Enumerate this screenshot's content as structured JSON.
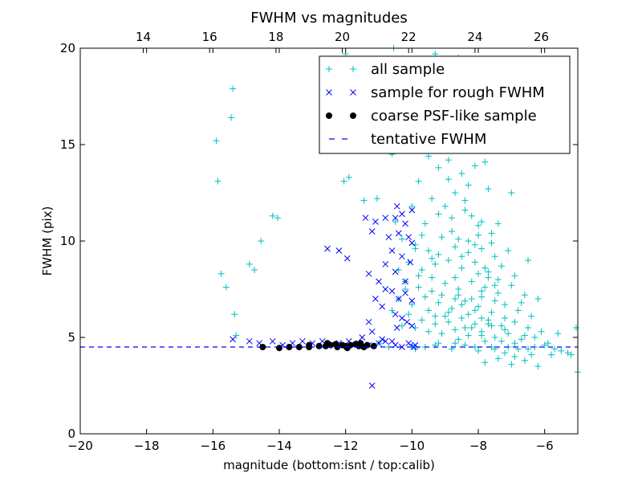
{
  "chart_data": {
    "type": "scatter",
    "title": "FWHM vs magnitudes",
    "xlabel": "magnitude (bottom:isnt / top:calib)",
    "ylabel": "FWHM (pix)",
    "xlim": [
      -20,
      -5
    ],
    "ylim": [
      0,
      20
    ],
    "x_ticks": [
      -20,
      -18,
      -16,
      -14,
      -12,
      -10,
      -8,
      -6
    ],
    "x_tick_labels": [
      "−20",
      "−18",
      "−16",
      "−14",
      "−12",
      "−10",
      "−8",
      "−6"
    ],
    "y_ticks": [
      0,
      5,
      10,
      15,
      20
    ],
    "y_tick_labels": [
      "0",
      "5",
      "10",
      "15",
      "20"
    ],
    "top_axis": {
      "offset": 32.1,
      "ticks": [
        14,
        16,
        18,
        20,
        22,
        24,
        26
      ],
      "tick_labels": [
        "14",
        "16",
        "18",
        "20",
        "22",
        "24",
        "26"
      ]
    },
    "legend_position": "upper right",
    "series": [
      {
        "name": "all sample",
        "marker": "+",
        "color": "#00bfbf",
        "points": [
          [
            -15.9,
            15.2
          ],
          [
            -15.85,
            13.1
          ],
          [
            -15.4,
            17.9
          ],
          [
            -15.45,
            16.4
          ],
          [
            -15.75,
            8.3
          ],
          [
            -15.6,
            7.6
          ],
          [
            -15.35,
            6.2
          ],
          [
            -15.3,
            5.1
          ],
          [
            -14.9,
            8.8
          ],
          [
            -14.55,
            10.0
          ],
          [
            -14.2,
            11.3
          ],
          [
            -14.05,
            11.2
          ],
          [
            -14.75,
            8.5
          ],
          [
            -12.0,
            19.7
          ],
          [
            -12.05,
            13.1
          ],
          [
            -11.9,
            13.3
          ],
          [
            -11.45,
            12.1
          ],
          [
            -11.05,
            12.2
          ],
          [
            -10.6,
            14.5
          ],
          [
            -10.3,
            16.0
          ],
          [
            -10.15,
            14.8
          ],
          [
            -10.55,
            20.0
          ],
          [
            -9.6,
            18.5
          ],
          [
            -9.3,
            19.7
          ],
          [
            -9.0,
            19.4
          ],
          [
            -8.6,
            19.5
          ],
          [
            -7.9,
            19.2
          ],
          [
            -9.5,
            14.4
          ],
          [
            -9.2,
            13.8
          ],
          [
            -8.9,
            14.2
          ],
          [
            -8.5,
            13.5
          ],
          [
            -8.1,
            13.9
          ],
          [
            -7.8,
            14.1
          ],
          [
            -9.8,
            13.1
          ],
          [
            -9.4,
            12.2
          ],
          [
            -8.7,
            12.5
          ],
          [
            -8.3,
            12.9
          ],
          [
            -7.0,
            12.5
          ],
          [
            -10.5,
            11.0
          ],
          [
            -10.0,
            11.8
          ],
          [
            -9.6,
            10.9
          ],
          [
            -9.2,
            11.4
          ],
          [
            -8.8,
            11.2
          ],
          [
            -8.4,
            11.6
          ],
          [
            -8.0,
            10.8
          ],
          [
            -7.6,
            10.4
          ],
          [
            -10.3,
            10.1
          ],
          [
            -9.9,
            9.8
          ],
          [
            -9.5,
            9.5
          ],
          [
            -9.1,
            10.2
          ],
          [
            -8.7,
            9.7
          ],
          [
            -8.3,
            10.0
          ],
          [
            -7.9,
            9.6
          ],
          [
            -7.5,
            9.2
          ],
          [
            -7.1,
            9.5
          ],
          [
            -6.5,
            9.0
          ],
          [
            -10.1,
            8.9
          ],
          [
            -9.7,
            8.5
          ],
          [
            -9.3,
            8.8
          ],
          [
            -8.9,
            9.0
          ],
          [
            -8.5,
            8.6
          ],
          [
            -8.1,
            8.9
          ],
          [
            -7.7,
            8.4
          ],
          [
            -7.3,
            8.7
          ],
          [
            -6.9,
            8.2
          ],
          [
            -10.2,
            7.9
          ],
          [
            -9.8,
            7.6
          ],
          [
            -9.4,
            8.1
          ],
          [
            -9.0,
            7.8
          ],
          [
            -8.6,
            7.5
          ],
          [
            -8.2,
            7.9
          ],
          [
            -7.8,
            7.6
          ],
          [
            -7.4,
            7.3
          ],
          [
            -7.0,
            7.7
          ],
          [
            -6.6,
            7.2
          ],
          [
            -10.4,
            7.0
          ],
          [
            -10.0,
            6.7
          ],
          [
            -9.6,
            7.1
          ],
          [
            -9.2,
            6.8
          ],
          [
            -8.8,
            6.5
          ],
          [
            -8.4,
            6.9
          ],
          [
            -8.0,
            6.6
          ],
          [
            -7.6,
            6.3
          ],
          [
            -7.2,
            6.7
          ],
          [
            -6.8,
            6.4
          ],
          [
            -6.4,
            6.1
          ],
          [
            -10.1,
            6.2
          ],
          [
            -9.7,
            5.9
          ],
          [
            -9.3,
            6.1
          ],
          [
            -8.9,
            5.8
          ],
          [
            -8.5,
            6.0
          ],
          [
            -8.1,
            5.7
          ],
          [
            -7.7,
            5.9
          ],
          [
            -7.3,
            5.6
          ],
          [
            -6.9,
            5.8
          ],
          [
            -6.5,
            5.5
          ],
          [
            -6.1,
            5.3
          ],
          [
            -5.6,
            5.2
          ],
          [
            -5.05,
            5.5
          ],
          [
            -9.9,
            5.5
          ],
          [
            -9.5,
            5.3
          ],
          [
            -9.1,
            5.2
          ],
          [
            -8.7,
            5.4
          ],
          [
            -8.3,
            5.1
          ],
          [
            -7.9,
            5.3
          ],
          [
            -7.5,
            5.0
          ],
          [
            -7.1,
            5.2
          ],
          [
            -6.7,
            4.9
          ],
          [
            -6.3,
            5.0
          ],
          [
            -5.9,
            4.7
          ],
          [
            -5.5,
            4.3
          ],
          [
            -5.0,
            3.2
          ],
          [
            -10.0,
            4.6
          ],
          [
            -9.6,
            4.5
          ],
          [
            -9.2,
            4.7
          ],
          [
            -8.8,
            4.4
          ],
          [
            -8.4,
            4.6
          ],
          [
            -8.0,
            4.3
          ],
          [
            -7.6,
            4.5
          ],
          [
            -7.2,
            4.2
          ],
          [
            -6.8,
            4.4
          ],
          [
            -6.4,
            4.1
          ],
          [
            -7.8,
            3.7
          ],
          [
            -7.4,
            3.9
          ],
          [
            -7.0,
            3.6
          ],
          [
            -6.6,
            3.8
          ],
          [
            -6.2,
            3.5
          ],
          [
            -8.6,
            7.2
          ],
          [
            -8.2,
            7.0
          ],
          [
            -7.9,
            7.4
          ],
          [
            -7.5,
            6.9
          ],
          [
            -7.7,
            8.1
          ],
          [
            -8.0,
            8.3
          ],
          [
            -7.4,
            8.0
          ],
          [
            -8.3,
            6.2
          ],
          [
            -7.9,
            6.0
          ],
          [
            -7.6,
            5.6
          ],
          [
            -8.9,
            6.3
          ],
          [
            -9.4,
            7.4
          ],
          [
            -8.5,
            9.2
          ],
          [
            -8.8,
            10.5
          ],
          [
            -9.0,
            11.8
          ],
          [
            -7.2,
            6.0
          ],
          [
            -6.7,
            6.8
          ],
          [
            -6.2,
            7.0
          ],
          [
            -8.2,
            5.5
          ],
          [
            -7.9,
            5.1
          ],
          [
            -7.3,
            4.8
          ],
          [
            -8.6,
            4.9
          ],
          [
            -9.3,
            5.7
          ],
          [
            -10.3,
            5.6
          ],
          [
            -10.6,
            6.4
          ],
          [
            -10.2,
            7.5
          ],
          [
            -9.8,
            8.2
          ],
          [
            -9.2,
            9.3
          ],
          [
            -8.1,
            9.8
          ],
          [
            -7.9,
            11.0
          ],
          [
            -8.4,
            12.1
          ],
          [
            -7.7,
            12.7
          ],
          [
            -8.9,
            13.2
          ],
          [
            -9.7,
            10.3
          ],
          [
            -9.1,
            7.2
          ],
          [
            -8.7,
            7.0
          ],
          [
            -8.4,
            5.5
          ],
          [
            -7.8,
            4.8
          ],
          [
            -7.1,
            4.5
          ],
          [
            -6.9,
            4.0
          ],
          [
            -6.5,
            4.4
          ],
          [
            -5.8,
            4.1
          ],
          [
            -5.3,
            4.2
          ],
          [
            -6.0,
            4.6
          ],
          [
            -6.6,
            5.1
          ],
          [
            -7.2,
            5.4
          ],
          [
            -7.7,
            5.7
          ],
          [
            -8.1,
            6.4
          ],
          [
            -8.5,
            6.7
          ],
          [
            -7.9,
            7.1
          ],
          [
            -7.5,
            7.7
          ],
          [
            -7.8,
            8.6
          ],
          [
            -8.3,
            9.4
          ],
          [
            -7.6,
            9.9
          ],
          [
            -8.0,
            10.3
          ],
          [
            -8.6,
            10.1
          ],
          [
            -9.4,
            9.1
          ],
          [
            -9.9,
            9.6
          ],
          [
            -10.4,
            8.5
          ],
          [
            -8.2,
            11.3
          ],
          [
            -7.4,
            10.9
          ],
          [
            -8.7,
            8.1
          ],
          [
            -9.0,
            6.1
          ],
          [
            -9.5,
            6.4
          ],
          [
            -11.0,
            4.7
          ],
          [
            -11.5,
            4.6
          ],
          [
            -10.7,
            4.5
          ],
          [
            -9.9,
            4.4
          ],
          [
            -9.3,
            4.6
          ],
          [
            -8.7,
            4.7
          ],
          [
            -8.1,
            4.5
          ],
          [
            -7.5,
            4.4
          ],
          [
            -6.9,
            4.7
          ],
          [
            -6.3,
            4.5
          ],
          [
            -5.7,
            4.4
          ],
          [
            -5.2,
            4.1
          ]
        ]
      },
      {
        "name": "sample for rough FWHM",
        "marker": "x",
        "color": "#0000ff",
        "points": [
          [
            -15.4,
            4.9
          ],
          [
            -14.9,
            4.8
          ],
          [
            -14.6,
            4.7
          ],
          [
            -14.2,
            4.8
          ],
          [
            -13.9,
            4.6
          ],
          [
            -13.6,
            4.7
          ],
          [
            -13.3,
            4.8
          ],
          [
            -13.0,
            4.7
          ],
          [
            -12.7,
            4.8
          ],
          [
            -12.5,
            4.6
          ],
          [
            -12.2,
            4.7
          ],
          [
            -11.9,
            4.8
          ],
          [
            -11.6,
            4.7
          ],
          [
            -11.3,
            4.6
          ],
          [
            -11.0,
            4.7
          ],
          [
            -10.8,
            4.8
          ],
          [
            -10.5,
            4.6
          ],
          [
            -10.3,
            4.5
          ],
          [
            -10.1,
            4.7
          ],
          [
            -9.9,
            4.6
          ],
          [
            -12.55,
            9.6
          ],
          [
            -12.2,
            9.5
          ],
          [
            -11.95,
            9.1
          ],
          [
            -11.4,
            11.2
          ],
          [
            -11.1,
            11.0
          ],
          [
            -10.8,
            11.2
          ],
          [
            -10.5,
            11.2
          ],
          [
            -10.3,
            11.4
          ],
          [
            -10.45,
            11.8
          ],
          [
            -10.2,
            10.9
          ],
          [
            -10.0,
            11.6
          ],
          [
            -11.2,
            10.5
          ],
          [
            -10.7,
            10.2
          ],
          [
            -10.4,
            10.4
          ],
          [
            -10.1,
            10.2
          ],
          [
            -10.0,
            9.9
          ],
          [
            -10.6,
            9.5
          ],
          [
            -10.3,
            9.2
          ],
          [
            -10.05,
            8.9
          ],
          [
            -10.8,
            8.8
          ],
          [
            -10.5,
            8.4
          ],
          [
            -10.2,
            7.9
          ],
          [
            -10.6,
            7.4
          ],
          [
            -10.4,
            7.0
          ],
          [
            -10.2,
            7.3
          ],
          [
            -10.0,
            6.9
          ],
          [
            -11.3,
            8.3
          ],
          [
            -11.0,
            7.9
          ],
          [
            -10.8,
            7.5
          ],
          [
            -11.1,
            7.0
          ],
          [
            -10.9,
            6.6
          ],
          [
            -10.5,
            6.2
          ],
          [
            -10.3,
            6.0
          ],
          [
            -10.15,
            5.8
          ],
          [
            -10.45,
            5.5
          ],
          [
            -10.0,
            5.6
          ],
          [
            -11.3,
            5.8
          ],
          [
            -11.2,
            5.3
          ],
          [
            -11.5,
            5.0
          ],
          [
            -11.2,
            2.5
          ],
          [
            -10.9,
            4.9
          ],
          [
            -10.6,
            4.8
          ],
          [
            -9.95,
            4.5
          ]
        ]
      },
      {
        "name": "coarse PSF-like sample",
        "marker": "o",
        "color": "#000000",
        "points": [
          [
            -14.5,
            4.5
          ],
          [
            -14.0,
            4.45
          ],
          [
            -13.7,
            4.5
          ],
          [
            -13.4,
            4.5
          ],
          [
            -13.1,
            4.5
          ],
          [
            -13.1,
            4.6
          ],
          [
            -12.8,
            4.55
          ],
          [
            -12.6,
            4.55
          ],
          [
            -12.55,
            4.7
          ],
          [
            -12.45,
            4.6
          ],
          [
            -12.3,
            4.65
          ],
          [
            -12.25,
            4.5
          ],
          [
            -12.1,
            4.6
          ],
          [
            -12.0,
            4.55
          ],
          [
            -11.95,
            4.45
          ],
          [
            -11.85,
            4.6
          ],
          [
            -11.7,
            4.65
          ],
          [
            -11.6,
            4.55
          ],
          [
            -11.55,
            4.7
          ],
          [
            -11.45,
            4.5
          ],
          [
            -11.35,
            4.6
          ],
          [
            -11.15,
            4.55
          ]
        ]
      },
      {
        "name": "tentative FWHM",
        "marker": "dashed-line",
        "color": "#0000ff",
        "value": 4.5
      }
    ]
  }
}
